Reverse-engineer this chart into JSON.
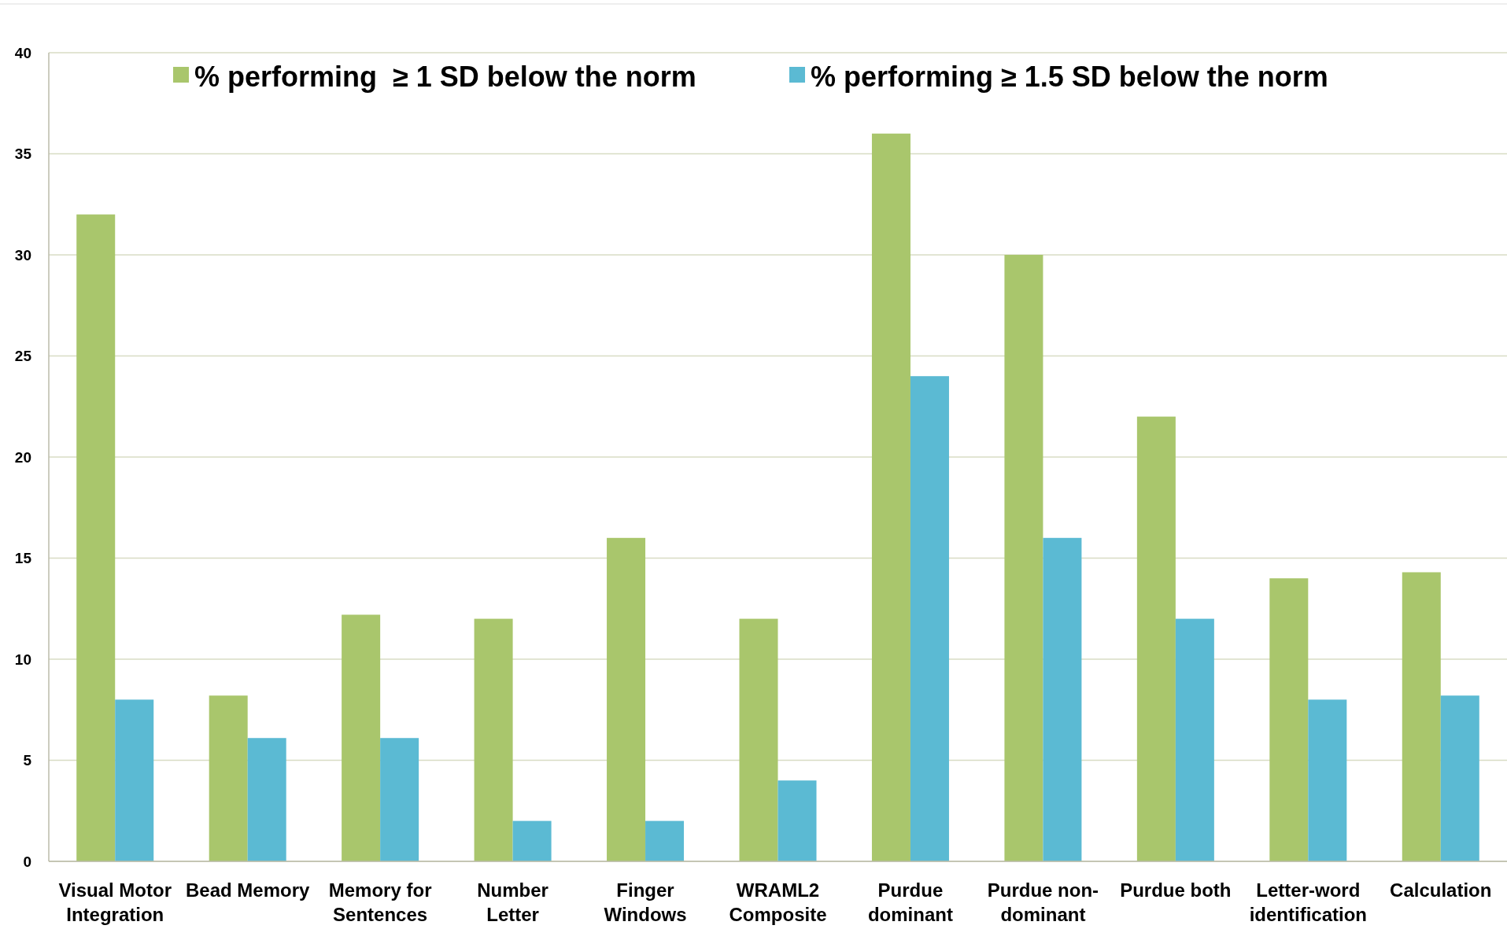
{
  "chart_data": {
    "type": "bar",
    "categories": [
      "Visual Motor Integration",
      "Bead Memory",
      "Memory for Sentences",
      "Number Letter",
      "Finger Windows",
      "WRAML2 Composite",
      "Purdue dominant",
      "Purdue non-dominant",
      "Purdue both",
      "Letter-word identification",
      "Calculation"
    ],
    "series": [
      {
        "name": "% performing  ≥ 1 SD below the norm",
        "color": "#a9c66c",
        "values": [
          32,
          8.2,
          12.2,
          12,
          16,
          12,
          36,
          30,
          22,
          14,
          14.3
        ]
      },
      {
        "name": "% performing ≥ 1.5 SD below the norm",
        "color": "#5bbad3",
        "values": [
          8,
          6.1,
          6.1,
          2,
          2,
          4,
          24,
          16,
          12,
          8,
          8.2
        ]
      }
    ],
    "ylim": [
      0,
      40
    ],
    "yticks": [
      0,
      5,
      10,
      15,
      20,
      25,
      30,
      35,
      40
    ],
    "grid": "y",
    "legend": "top"
  }
}
